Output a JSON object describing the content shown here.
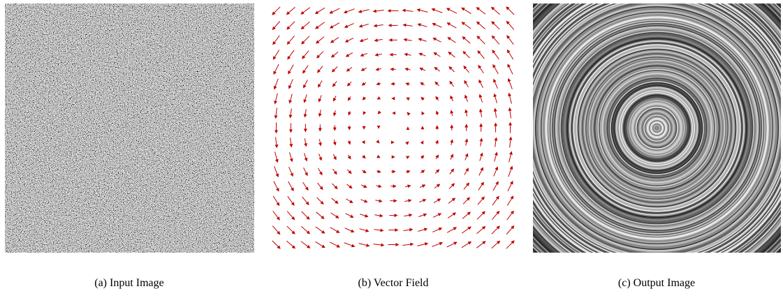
{
  "panels": [
    {
      "caption": "(a) Input Image"
    },
    {
      "caption": "(b) Vector Field"
    },
    {
      "caption": "(c) Output Image"
    }
  ]
}
